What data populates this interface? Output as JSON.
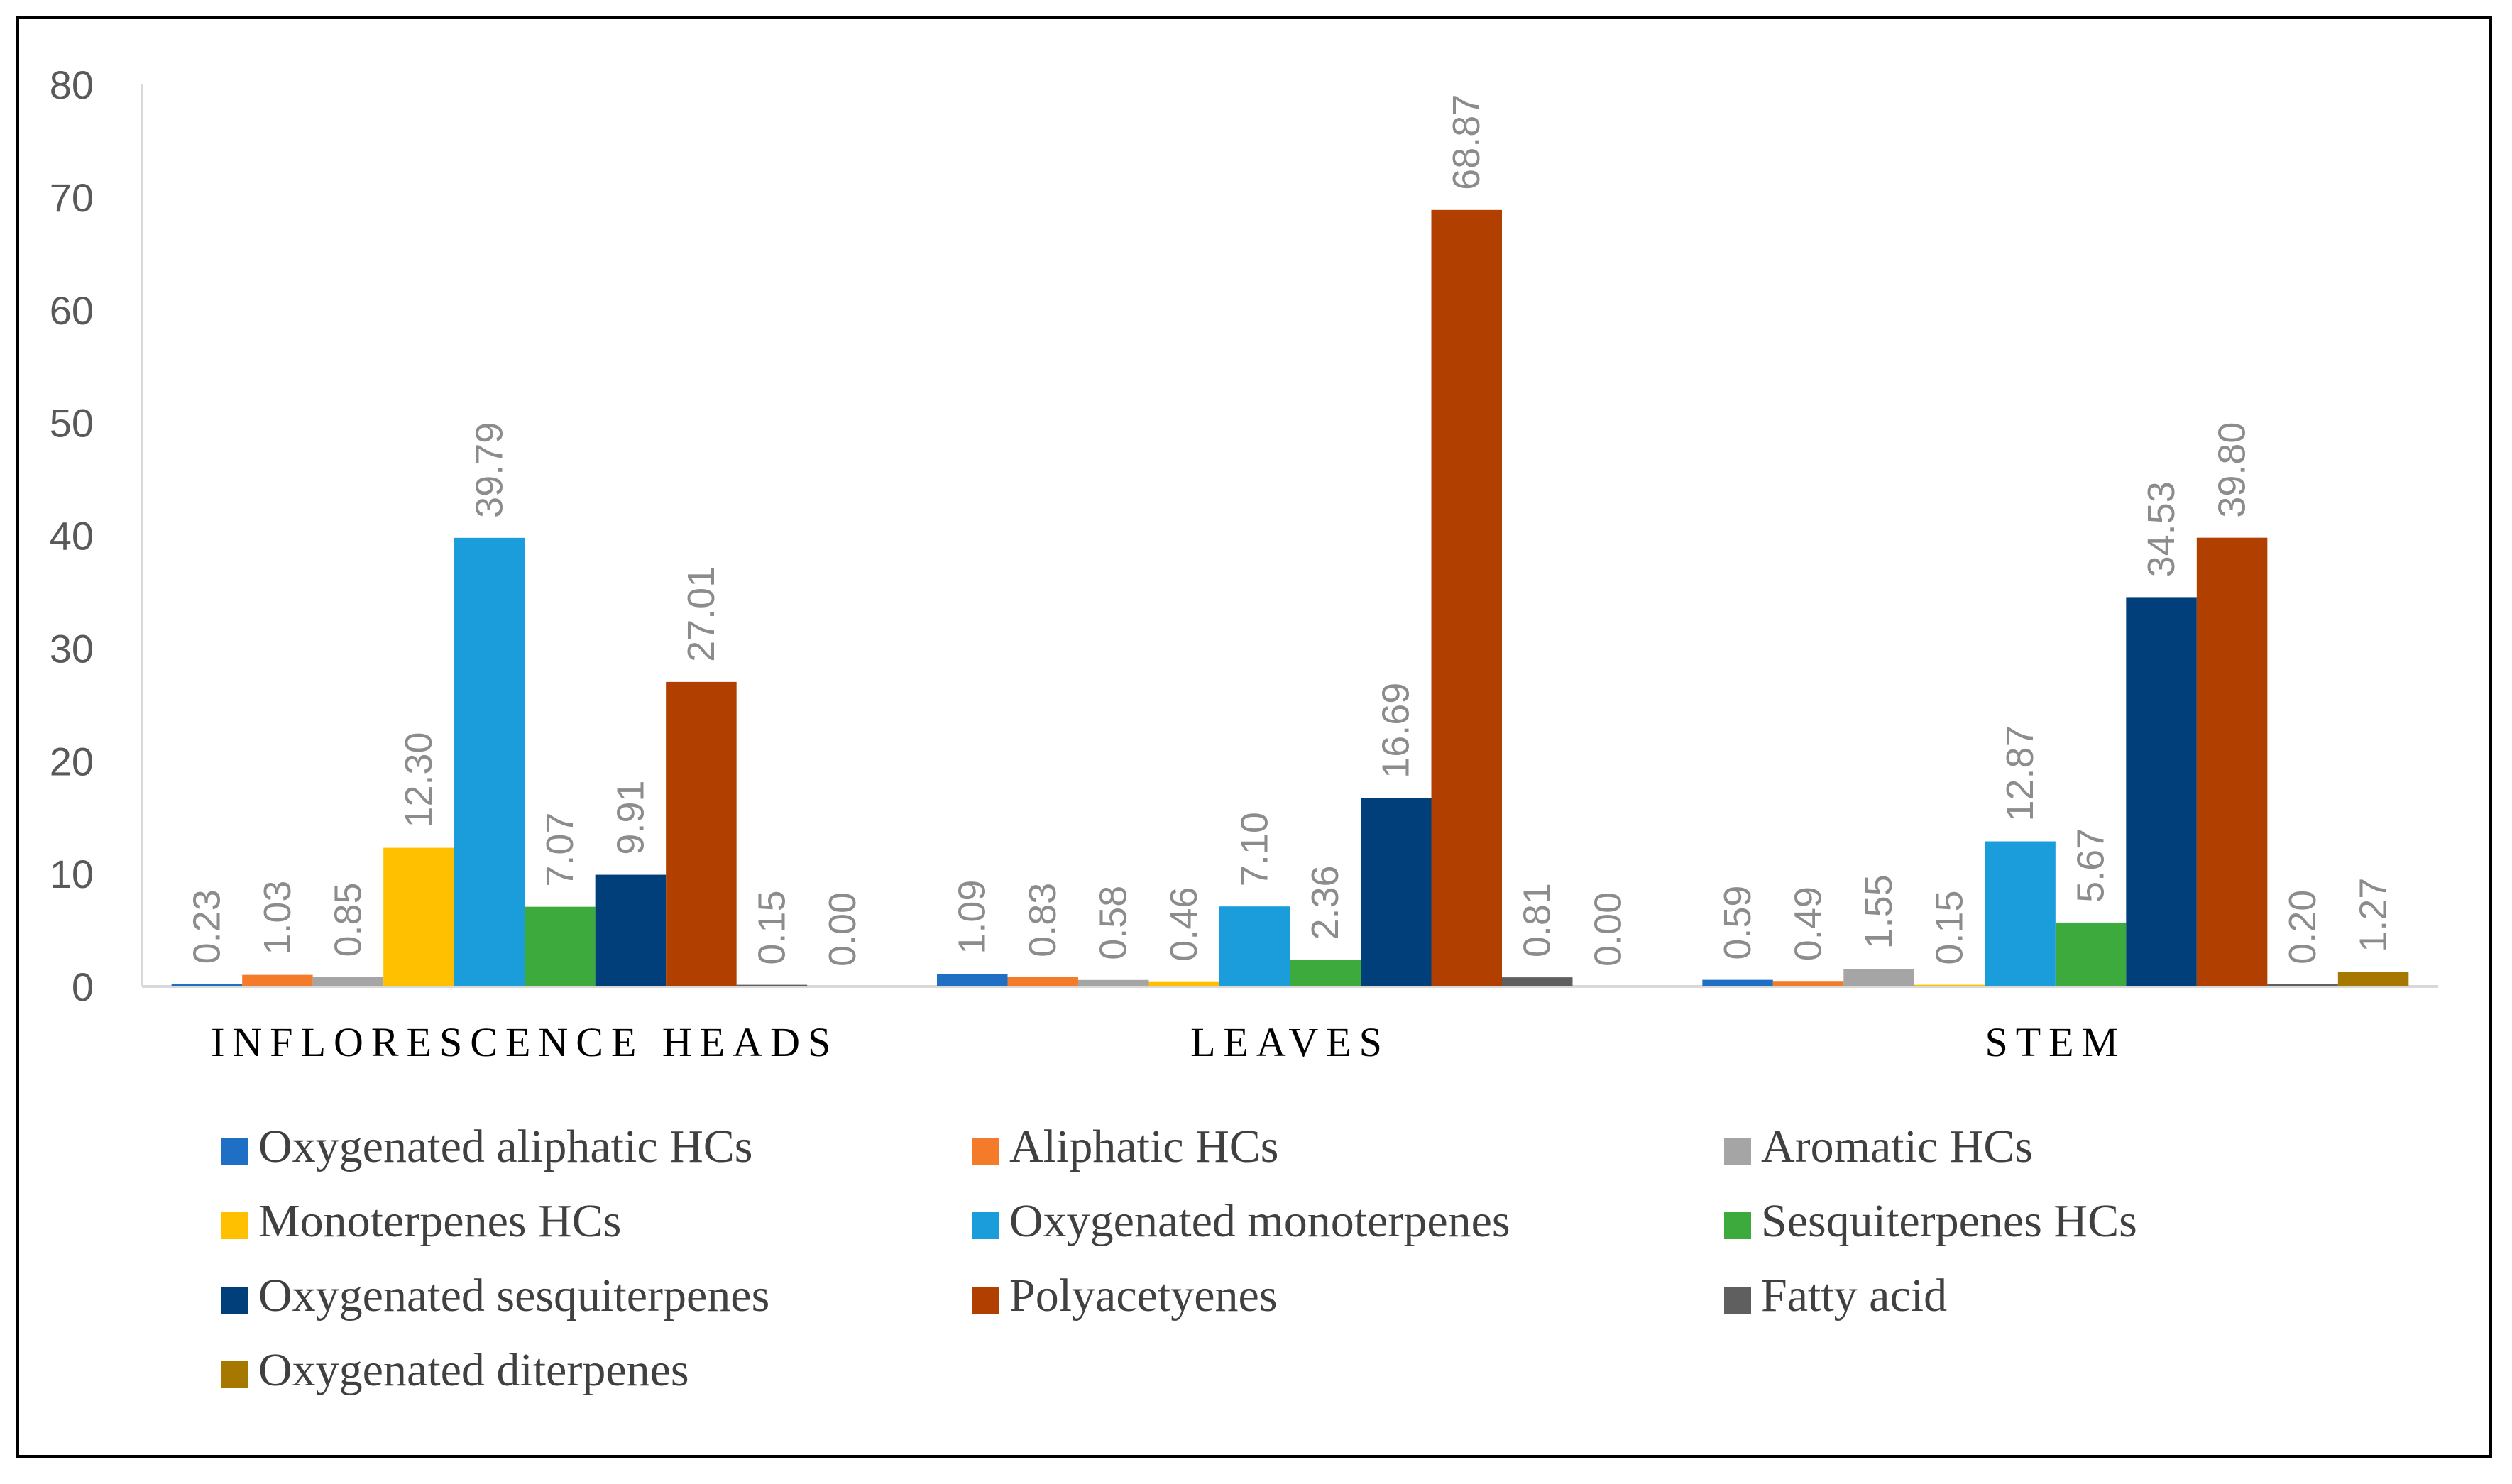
{
  "chart_data": {
    "type": "bar",
    "title": "",
    "xlabel": "",
    "ylabel": "",
    "ylim": [
      0,
      80
    ],
    "yticks": [
      0,
      10,
      20,
      30,
      40,
      50,
      60,
      70,
      80
    ],
    "grid": false,
    "legend_position": "bottom",
    "categories": [
      "INFLORESCENCE HEADS",
      "LEAVES",
      "STEM"
    ],
    "series": [
      {
        "name": "Oxygenated aliphatic HCs",
        "color": "#1f6fc5",
        "values": [
          0.23,
          1.09,
          0.59
        ],
        "labels": [
          "0.23",
          "1.09",
          "0.59"
        ]
      },
      {
        "name": "Aliphatic HCs",
        "color": "#f47b2a",
        "values": [
          1.03,
          0.83,
          0.49
        ],
        "labels": [
          "1.03",
          "0.83",
          "0.49"
        ]
      },
      {
        "name": "Aromatic HCs",
        "color": "#a5a5a5",
        "values": [
          0.85,
          0.58,
          1.55
        ],
        "labels": [
          "0.85",
          "0.58",
          "1.55"
        ]
      },
      {
        "name": "Monoterpenes HCs",
        "color": "#ffc000",
        "values": [
          12.3,
          0.46,
          0.15
        ],
        "labels": [
          "12.30",
          "0.46",
          "0.15"
        ]
      },
      {
        "name": "Oxygenated monoterpenes",
        "color": "#1b9ddb",
        "values": [
          39.79,
          7.1,
          12.87
        ],
        "labels": [
          "39.79",
          "7.10",
          "12.87"
        ]
      },
      {
        "name": "Sesquiterpenes HCs",
        "color": "#3daa3e",
        "values": [
          7.07,
          2.36,
          5.67
        ],
        "labels": [
          "7.07",
          "2.36",
          "5.67"
        ]
      },
      {
        "name": "Oxygenated sesquiterpenes",
        "color": "#003f7a",
        "values": [
          9.91,
          16.69,
          34.53
        ],
        "labels": [
          "9.91",
          "16.69",
          "34.53"
        ]
      },
      {
        "name": "Polyacetyenes",
        "color": "#b13f00",
        "values": [
          27.01,
          68.87,
          39.8
        ],
        "labels": [
          "27.01",
          "68.87",
          "39.80"
        ]
      },
      {
        "name": "Fatty acid",
        "color": "#5f5f5f",
        "values": [
          0.15,
          0.81,
          0.2
        ],
        "labels": [
          "0.15",
          "0.81",
          "0.20"
        ]
      },
      {
        "name": "Oxygenated diterpenes",
        "color": "#a67800",
        "values": [
          0.0,
          0.0,
          1.27
        ],
        "labels": [
          "0.00",
          "0.00",
          "1.27"
        ]
      }
    ]
  }
}
